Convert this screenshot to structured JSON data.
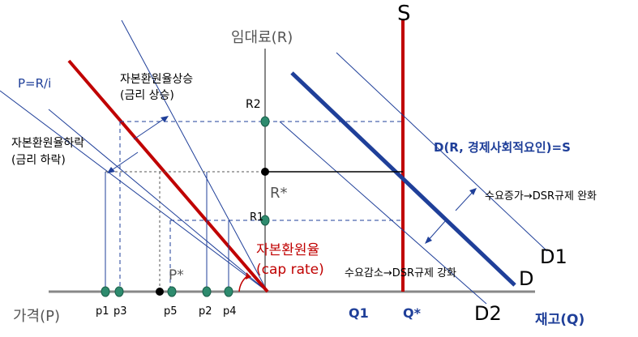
{
  "labels": {
    "S": "S",
    "rent_axis": "임대료(R)",
    "pri": "P=R/i",
    "cap_up_1": "자본환원율상승",
    "cap_up_2": "(금리 상승)",
    "cap_down_1": "자본환원율하락",
    "cap_down_2": "(금리 하락)",
    "R2": "R2",
    "R1": "R1",
    "Rstar": "R*",
    "demand_eq": "D(R, 경제사회적요인)=S",
    "demand_up": "수요증가→DSR규제 완화",
    "demand_down": "수요감소→DSR규제 강화",
    "D1": "D1",
    "D": "D",
    "D2": "D2",
    "cap_rate_1": "자본환원율",
    "cap_rate_2": "(cap rate)",
    "Pstar": "P*",
    "price_axis": "가격(P)",
    "p1": "p1",
    "p3": "p3",
    "p5": "p5",
    "p2": "p2",
    "p4": "p4",
    "Q1": "Q1",
    "Qstar": "Q*",
    "Q2": "D2",
    "stock_axis": "재고(Q)"
  },
  "colors": {
    "red": "#c00000",
    "blue": "#1f3f99",
    "navy": "#1f3f99",
    "green": "#2e8b6e",
    "black": "#000000",
    "axis": "#888888"
  }
}
